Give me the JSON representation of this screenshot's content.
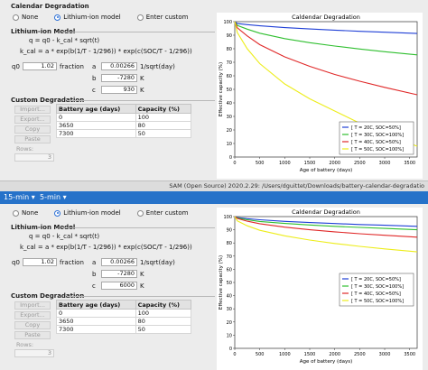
{
  "top": {
    "calendar_header": "Calendar Degradation",
    "radio_none": "None",
    "radio_liion": "Lithium-ion model",
    "radio_custom": "Enter custom",
    "liion_header": "Lithium-ion Model",
    "eq1": "q = q0 - k_cal * sqrt(t)",
    "eq2": "k_cal = a * exp(b(1/T - 1/296)) * exp(c(SOC/T - 1/296))",
    "q0_label": "q0",
    "q0_value": "1.02",
    "q0_unit": "fraction",
    "a_label": "a",
    "a_value": "0.00266",
    "a_unit": "1/sqrt(day)",
    "b_label": "b",
    "b_value": "-7280",
    "b_unit": "K",
    "c_label": "c",
    "c_value": "930",
    "c_unit": "K",
    "custom_header": "Custom Degradation",
    "btn_import": "Import...",
    "btn_export": "Export...",
    "btn_copy": "Copy",
    "btn_paste": "Paste",
    "rows_label": "Rows:",
    "rows_value": "3",
    "col_age": "Battery age (days)",
    "col_cap": "Capacity (%)",
    "table": [
      [
        "0",
        "100"
      ],
      [
        "3650",
        "80"
      ],
      [
        "7300",
        "50"
      ]
    ]
  },
  "window_title": "SAM (Open Source) 2020.2.29: /Users/dguittet/Downloads/battery-calendar-degradatio",
  "tab_a": "15-min",
  "tab_b": "5-min",
  "bottom": {
    "calendar_header": "",
    "radio_none": "None",
    "radio_liion": "Lithium-ion model",
    "radio_custom": "Enter custom",
    "liion_header": "Lithium-ion Model",
    "eq1": "q = q0 - k_cal * sqrt(t)",
    "eq2": "k_cal = a * exp(b(1/T - 1/296)) * exp(c(SOC/T - 1/296))",
    "q0_label": "q0",
    "q0_value": "1.02",
    "q0_unit": "fraction",
    "a_label": "a",
    "a_value": "0.00266",
    "a_unit": "1/sqrt(day)",
    "b_label": "b",
    "b_value": "-7280",
    "b_unit": "K",
    "c_label": "c",
    "c_value": "6000",
    "c_unit": "K",
    "custom_header": "Custom Degradation",
    "btn_import": "Import...",
    "btn_export": "Export...",
    "btn_copy": "Copy",
    "btn_paste": "Paste",
    "rows_label": "Rows:",
    "rows_value": "3",
    "col_age": "Battery age (days)",
    "col_cap": "Capacity (%)",
    "table": [
      [
        "0",
        "100"
      ],
      [
        "3650",
        "80"
      ],
      [
        "7300",
        "50"
      ]
    ]
  },
  "chart_data": [
    {
      "type": "line",
      "title": "Caldendar Degradation",
      "xlabel": "Age of battery (days)",
      "ylabel": "Effective capacity (%)",
      "xlim": [
        0,
        3650
      ],
      "ylim": [
        0,
        100
      ],
      "xticks": [
        0,
        500,
        1000,
        1500,
        2000,
        2500,
        3000,
        3500
      ],
      "yticks": [
        0,
        10,
        20,
        30,
        40,
        50,
        60,
        70,
        80,
        90,
        100
      ],
      "legend_position": "bottom-right",
      "series": [
        {
          "name": "[ T = 20C, SOC=50%]",
          "color": "#1f3fd6",
          "x": [
            0,
            50,
            250,
            500,
            1000,
            1500,
            2000,
            2500,
            3000,
            3650
          ],
          "y": [
            100,
            98.6,
            97.8,
            96.9,
            95.6,
            94.6,
            93.7,
            92.9,
            92.2,
            91.3
          ]
        },
        {
          "name": "[ T = 30C, SOC=100%]",
          "color": "#2fbf2f",
          "x": [
            0,
            50,
            250,
            500,
            1000,
            1500,
            2000,
            2500,
            3000,
            3650
          ],
          "y": [
            100,
            97.2,
            94.5,
            91.5,
            87.5,
            84.5,
            82,
            79.8,
            77.8,
            75.5
          ]
        },
        {
          "name": "[ T = 40C, SOC=50%]",
          "color": "#e02828",
          "x": [
            0,
            50,
            250,
            500,
            1000,
            1500,
            2000,
            2500,
            3000,
            3650
          ],
          "y": [
            100,
            95.5,
            89.5,
            83,
            74,
            67,
            61,
            56,
            51.5,
            46
          ]
        },
        {
          "name": "[ T = 50C, SOC=100%]",
          "color": "#eded1a",
          "x": [
            0,
            50,
            250,
            500,
            1000,
            1500,
            2000,
            2500,
            3000,
            3650
          ],
          "y": [
            100,
            92,
            80,
            69,
            54,
            43,
            34,
            25,
            17,
            8
          ]
        }
      ]
    },
    {
      "type": "line",
      "title": "Caldendar Degradation",
      "xlabel": "Age of battery (days)",
      "ylabel": "Effective capacity (%)",
      "xlim": [
        0,
        3650
      ],
      "ylim": [
        0,
        100
      ],
      "xticks": [
        0,
        500,
        1000,
        1500,
        2000,
        2500,
        3000,
        3500
      ],
      "yticks": [
        0,
        10,
        20,
        30,
        40,
        50,
        60,
        70,
        80,
        90,
        100
      ],
      "legend_position": "center-right",
      "series": [
        {
          "name": "[ T = 20C, SOC=50%]",
          "color": "#1f3fd6",
          "x": [
            0,
            50,
            250,
            500,
            1000,
            1500,
            2000,
            2500,
            3000,
            3650
          ],
          "y": [
            100,
            99.3,
            98.4,
            97.6,
            96.4,
            95.5,
            94.7,
            94,
            93.4,
            92.6
          ]
        },
        {
          "name": "[ T = 30C, SOC=100%]",
          "color": "#2fbf2f",
          "x": [
            0,
            50,
            250,
            500,
            1000,
            1500,
            2000,
            2500,
            3000,
            3650
          ],
          "y": [
            100,
            98.9,
            97.6,
            96.3,
            94.8,
            93.6,
            92.6,
            91.8,
            91,
            90
          ]
        },
        {
          "name": "[ T = 40C, SOC=50%]",
          "color": "#e02828",
          "x": [
            0,
            50,
            250,
            500,
            1000,
            1500,
            2000,
            2500,
            3000,
            3650
          ],
          "y": [
            100,
            98.6,
            96.5,
            94.6,
            92,
            90,
            88.4,
            87,
            85.8,
            84.4
          ]
        },
        {
          "name": "[ T = 50C, SOC=100%]",
          "color": "#eded1a",
          "x": [
            0,
            50,
            250,
            500,
            1000,
            1500,
            2000,
            2500,
            3000,
            3650
          ],
          "y": [
            100,
            96.8,
            93,
            89.6,
            85.4,
            82.2,
            79.6,
            77.4,
            75.5,
            73.2
          ]
        }
      ]
    }
  ]
}
